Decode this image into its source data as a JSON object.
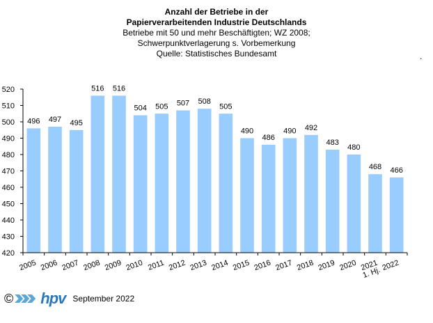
{
  "titles": {
    "line1": "Anzahl der Betriebe in der",
    "line2": "Papierverarbeitenden Industrie Deutschlands",
    "line3": "Betriebe mit 50 und mehr Beschäftigten;  WZ 2008;",
    "line4": "Schwerpunktverlagerung  s. Vorbemerkung",
    "line5": "Quelle:  Statistisches Bundesamt",
    "stray_dot": "."
  },
  "footer": {
    "copyright": "©",
    "logo_text": "hpv",
    "date": "September 2022"
  },
  "colors": {
    "bar": "#99ccff",
    "axis": "#000000",
    "brand": "#2a78b9"
  },
  "chart_data": {
    "type": "bar",
    "categories": [
      "2005",
      "2006",
      "2007",
      "2008",
      "2009",
      "2010",
      "2011",
      "2012",
      "2013",
      "2014",
      "2015",
      "2016",
      "2017",
      "2018",
      "2019",
      "2020",
      "2021\n1. Hj.",
      "2022"
    ],
    "values": [
      496,
      497,
      495,
      516,
      516,
      504,
      505,
      507,
      508,
      505,
      490,
      486,
      490,
      492,
      483,
      480,
      468,
      466
    ],
    "ylim": [
      420,
      520
    ],
    "yticks": [
      420,
      430,
      440,
      450,
      460,
      470,
      480,
      490,
      500,
      510,
      520
    ],
    "grid": false,
    "legend": "none"
  }
}
